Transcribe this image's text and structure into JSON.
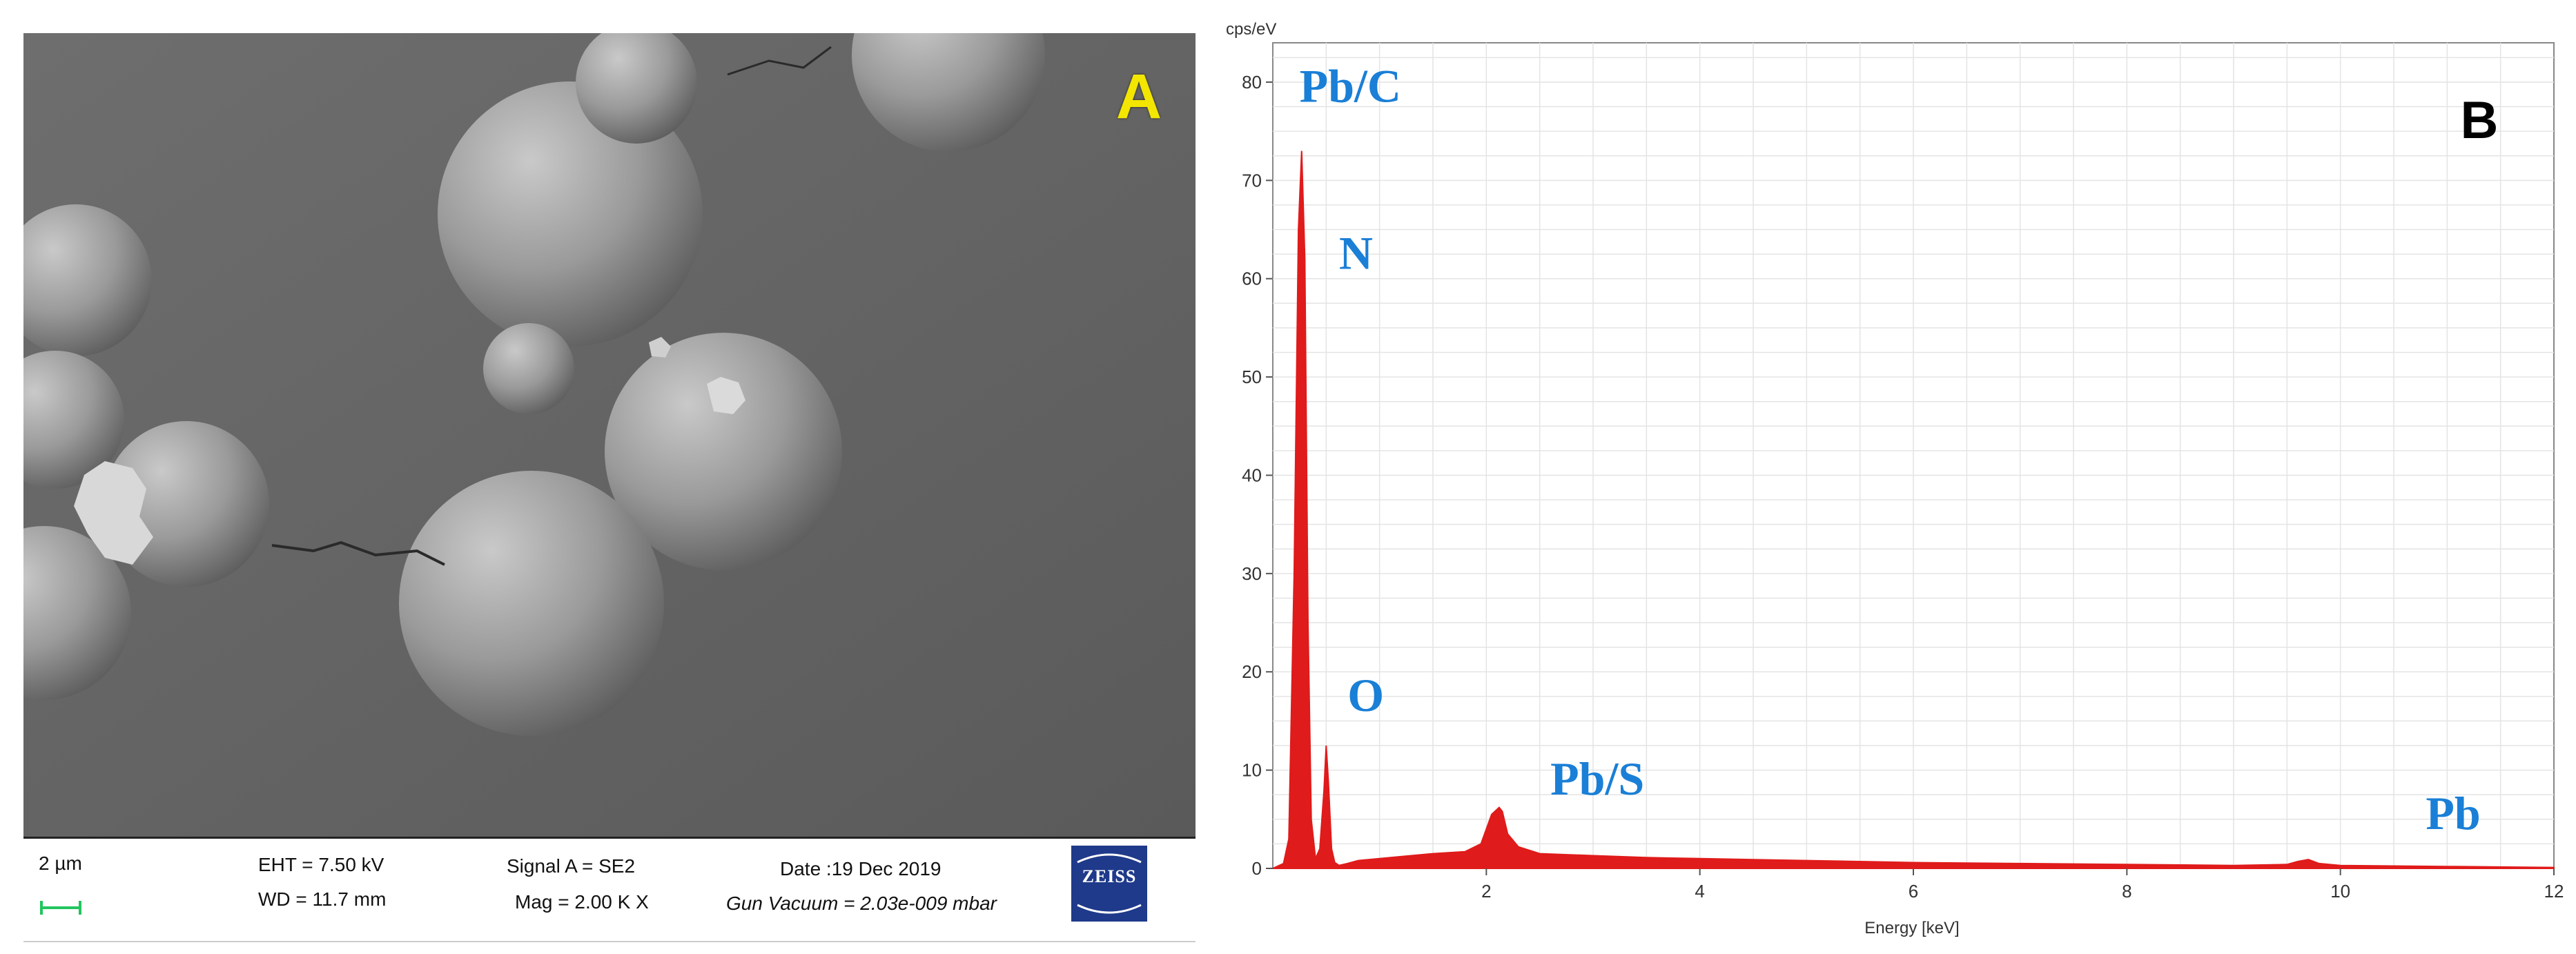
{
  "panel_a": {
    "letter": "A",
    "info_bar": {
      "scale": "2 µm",
      "eht": "EHT =  7.50 kV",
      "wd": "WD = 11.7 mm",
      "signal": "Signal A = SE2",
      "mag": "Mag =   2.00 K X",
      "date": "Date :19 Dec 2019",
      "vacuum": "Gun Vacuum = 2.03e-009 mbar",
      "logo_text": "ZEISS"
    },
    "colors": {
      "letter": "#f3e600",
      "scale_bar": "#22c55e",
      "logo": "#1f3a8a"
    }
  },
  "chart_data": {
    "type": "line",
    "panel_letter": "B",
    "ylabel": "cps/eV",
    "xlabel": "Energy [keV]",
    "xlim": [
      0,
      12
    ],
    "ylim": [
      0,
      84
    ],
    "x_ticks": [
      2,
      4,
      6,
      8,
      10,
      12
    ],
    "y_ticks": [
      0,
      10,
      20,
      30,
      40,
      50,
      60,
      70,
      80
    ],
    "grid": true,
    "fill_color": "#e01b1b",
    "annotations": [
      {
        "text": "Pb/C",
        "x": 0.25,
        "y": 78
      },
      {
        "text": "N",
        "x": 0.62,
        "y": 61
      },
      {
        "text": "O",
        "x": 0.7,
        "y": 16
      },
      {
        "text": "Pb/S",
        "x": 2.6,
        "y": 7.5
      },
      {
        "text": "Pb",
        "x": 10.8,
        "y": 4
      }
    ],
    "series": [
      {
        "x": [
          0.0,
          0.1,
          0.15,
          0.2,
          0.24,
          0.27,
          0.3,
          0.33,
          0.36,
          0.4,
          0.44,
          0.48,
          0.5,
          0.52,
          0.55,
          0.58,
          0.62,
          0.7,
          0.8,
          1.0,
          1.2,
          1.5,
          1.8,
          1.95,
          2.05,
          2.12,
          2.15,
          2.2,
          2.3,
          2.5,
          3.0,
          3.5,
          4.0,
          5.0,
          6.0,
          7.0,
          8.0,
          9.0,
          9.5,
          9.6,
          9.7,
          9.8,
          10.0,
          11.0,
          12.0
        ],
        "y": [
          0,
          0.5,
          3,
          30,
          65,
          73,
          62,
          25,
          5,
          1,
          2,
          8,
          12.5,
          9,
          2,
          0.6,
          0.3,
          0.5,
          0.8,
          1.0,
          1.2,
          1.5,
          1.7,
          2.5,
          5.5,
          6.2,
          5.8,
          3.5,
          2.2,
          1.5,
          1.3,
          1.1,
          1.0,
          0.8,
          0.6,
          0.5,
          0.4,
          0.3,
          0.4,
          0.7,
          0.9,
          0.5,
          0.3,
          0.2,
          0.1
        ]
      }
    ]
  }
}
